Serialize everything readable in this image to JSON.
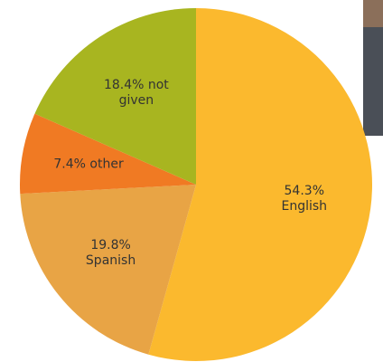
{
  "chart_data": {
    "type": "pie",
    "values": [
      54.3,
      19.8,
      7.4,
      18.4
    ],
    "value_labels": [
      "54.3% English",
      "19.8% Spanish",
      "7.4% other",
      "18.4% not given"
    ],
    "colors": [
      "#fbb92e",
      "#e8a445",
      "#f07a23",
      "#a8b520"
    ]
  }
}
